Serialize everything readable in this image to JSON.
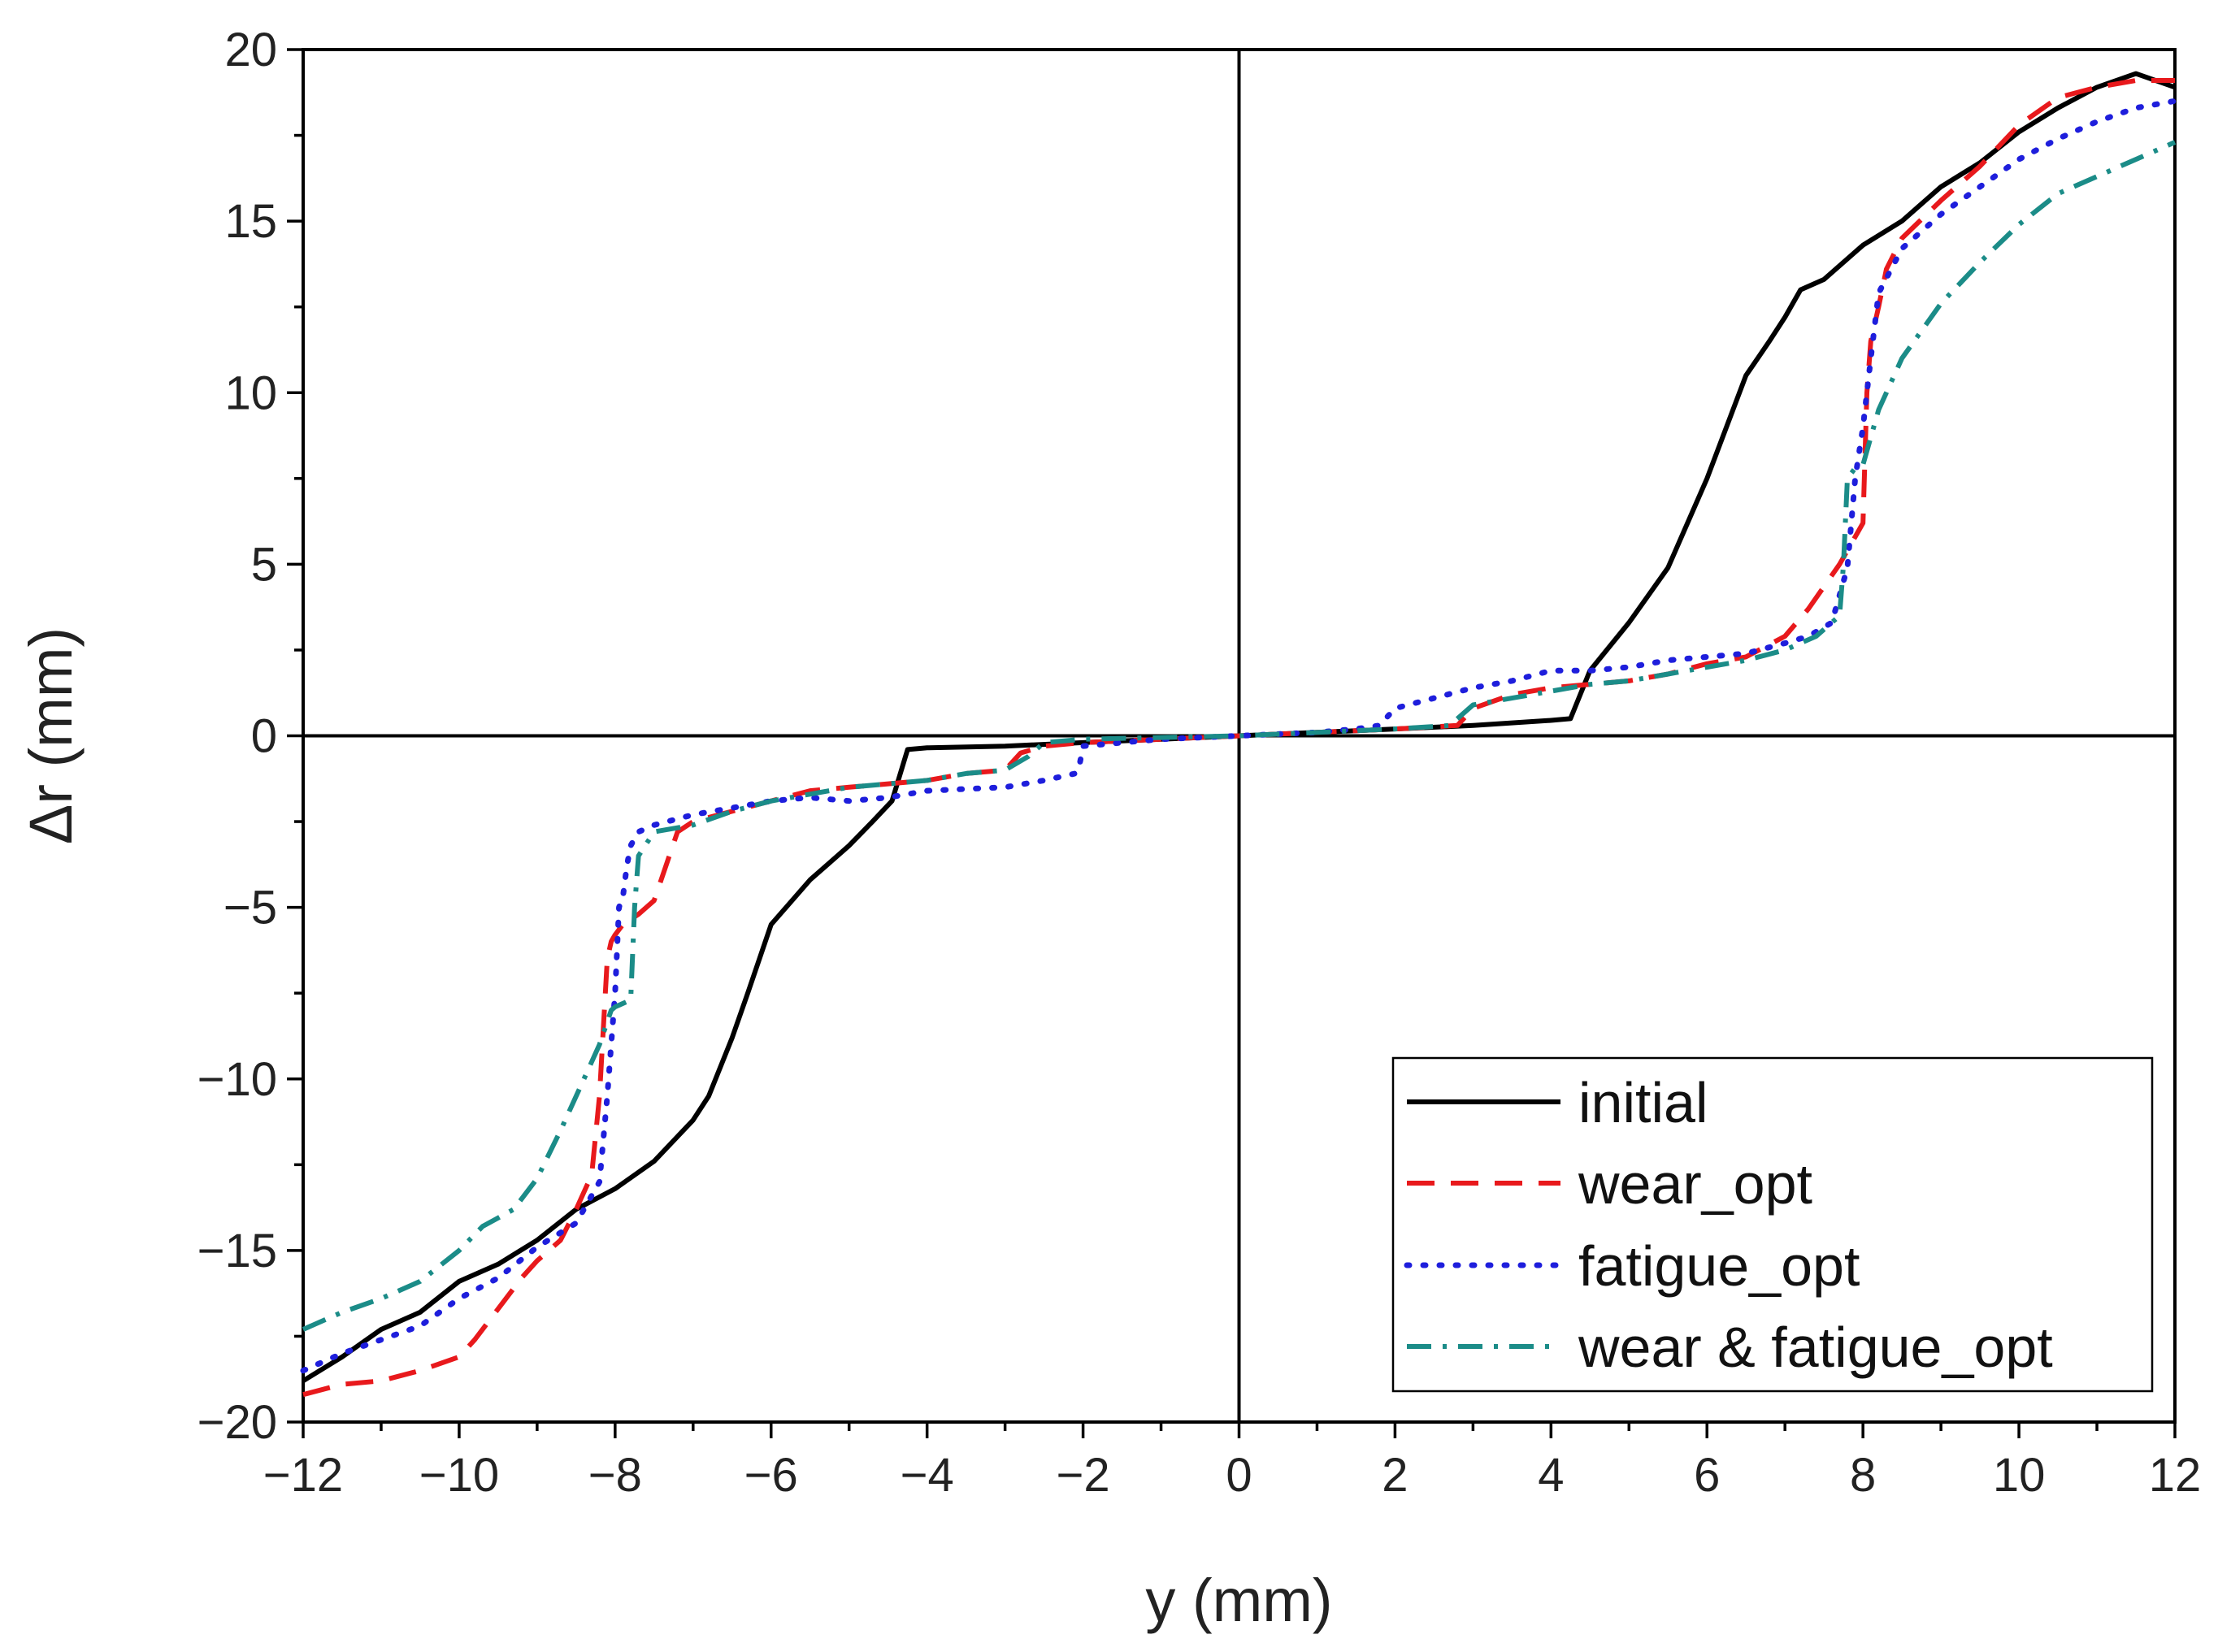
{
  "chart_data": {
    "type": "line",
    "title": "",
    "xlabel": "y (mm)",
    "ylabel": "Δr (mm)",
    "xlim": [
      -12,
      12
    ],
    "ylim": [
      -20,
      20
    ],
    "xticks": [
      -12,
      -10,
      -8,
      -6,
      -4,
      -2,
      0,
      2,
      4,
      6,
      8,
      10,
      12
    ],
    "yticks": [
      -20,
      -15,
      -10,
      -5,
      0,
      5,
      10,
      15,
      20
    ],
    "xtick_labels": [
      "−12",
      "−10",
      "−8",
      "−6",
      "−4",
      "−2",
      "0",
      "2",
      "4",
      "6",
      "8",
      "10",
      "12"
    ],
    "ytick_labels": [
      "−20",
      "−15",
      "−10",
      "−5",
      "0",
      "5",
      "10",
      "15",
      "20"
    ],
    "grid": false,
    "zero_lines": true,
    "legend_position": "bottom-right",
    "series": [
      {
        "name": "initial",
        "color": "#000000",
        "dash": "solid",
        "x": [
          -12,
          -11.5,
          -11,
          -10.5,
          -10,
          -9.5,
          -9,
          -8.5,
          -8,
          -7.5,
          -7,
          -6.8,
          -6.5,
          -6.3,
          -6,
          -5.5,
          -5,
          -4.7,
          -4.45,
          -4.25,
          -4,
          -3,
          -2,
          -1,
          0,
          1,
          2,
          3,
          4,
          4.25,
          4.5,
          5,
          5.5,
          6,
          6.5,
          6.8,
          7,
          7.2,
          7.5,
          8,
          8.5,
          9,
          9.5,
          10,
          10.5,
          11,
          11.5,
          12
        ],
        "y": [
          -18.8,
          -18.1,
          -17.3,
          -16.8,
          -15.9,
          -15.4,
          -14.7,
          -13.8,
          -13.2,
          -12.4,
          -11.2,
          -10.5,
          -8.8,
          -7.5,
          -5.5,
          -4.2,
          -3.2,
          -2.5,
          -1.9,
          -0.4,
          -0.35,
          -0.3,
          -0.2,
          -0.1,
          0,
          0.1,
          0.2,
          0.3,
          0.45,
          0.5,
          1.9,
          3.3,
          4.9,
          7.5,
          10.5,
          11.5,
          12.2,
          13.0,
          13.3,
          14.3,
          15.0,
          16.0,
          16.7,
          17.6,
          18.3,
          18.9,
          19.3,
          18.9
        ]
      },
      {
        "name": "wear_opt",
        "color": "#e8191c",
        "dash": "dashed",
        "x": [
          -12,
          -11.5,
          -11,
          -10.5,
          -10,
          -9.8,
          -9.5,
          -9.2,
          -9,
          -8.7,
          -8.5,
          -8.3,
          -8.2,
          -8.1,
          -8.05,
          -8,
          -7.9,
          -7.7,
          -7.5,
          -7.2,
          -7,
          -6.5,
          -6,
          -5.5,
          -5,
          -4.5,
          -4,
          -3.5,
          -3,
          -2.8,
          -2.5,
          -2,
          -1,
          0,
          1,
          2,
          2.8,
          3,
          3.5,
          4,
          4.5,
          5,
          5.5,
          6,
          6.5,
          7,
          7.3,
          7.7,
          7.9,
          8,
          8.05,
          8.1,
          8.2,
          8.3,
          8.5,
          9,
          9.5,
          10,
          10.5,
          11,
          11.5,
          12
        ],
        "y": [
          -19.2,
          -18.9,
          -18.8,
          -18.5,
          -18.1,
          -17.6,
          -16.7,
          -15.8,
          -15.3,
          -14.7,
          -13.8,
          -12.8,
          -10.5,
          -6.5,
          -6.0,
          -5.8,
          -5.5,
          -5.2,
          -4.8,
          -2.8,
          -2.5,
          -2.2,
          -1.9,
          -1.6,
          -1.5,
          -1.4,
          -1.3,
          -1.1,
          -1.0,
          -0.5,
          -0.3,
          -0.2,
          -0.1,
          0,
          0.1,
          0.2,
          0.3,
          0.8,
          1.2,
          1.4,
          1.5,
          1.6,
          1.8,
          2.1,
          2.3,
          2.9,
          3.7,
          5.0,
          5.8,
          6.2,
          10.0,
          11.5,
          12.5,
          13.6,
          14.5,
          15.6,
          16.6,
          17.8,
          18.6,
          18.9,
          19.1,
          19.1
        ]
      },
      {
        "name": "fatigue_opt",
        "color": "#1e1edc",
        "dash": "dotted",
        "x": [
          -12,
          -11.5,
          -11,
          -10.5,
          -10,
          -9.5,
          -9,
          -8.5,
          -8.2,
          -8.1,
          -8.0,
          -7.95,
          -7.9,
          -7.85,
          -7.8,
          -7.7,
          -7.5,
          -7,
          -6.5,
          -6,
          -5.5,
          -5,
          -4.5,
          -4,
          -3,
          -2.5,
          -2.1,
          -2.05,
          -2,
          -1.5,
          -1,
          0,
          1,
          1.5,
          1.8,
          2,
          2.5,
          3,
          3.5,
          4,
          4.5,
          5,
          5.5,
          6,
          6.5,
          7,
          7.3,
          7.6,
          7.8,
          7.9,
          8.0,
          8.1,
          8.2,
          8.5,
          9,
          9.5,
          10,
          10.5,
          11,
          11.5,
          12
        ],
        "y": [
          -18.5,
          -18.0,
          -17.6,
          -17.2,
          -16.4,
          -15.8,
          -14.9,
          -14.2,
          -13.0,
          -10.5,
          -7.5,
          -5.0,
          -4.7,
          -3.8,
          -3.2,
          -2.8,
          -2.6,
          -2.3,
          -2.1,
          -1.9,
          -1.8,
          -1.9,
          -1.8,
          -1.6,
          -1.5,
          -1.3,
          -1.1,
          -0.9,
          -0.3,
          -0.2,
          -0.1,
          0,
          0.1,
          0.2,
          0.3,
          0.8,
          1.1,
          1.4,
          1.6,
          1.9,
          1.9,
          2.0,
          2.2,
          2.3,
          2.4,
          2.7,
          2.9,
          3.3,
          4.9,
          7.5,
          9.0,
          11.0,
          12.9,
          14.2,
          15.2,
          16.0,
          16.8,
          17.4,
          17.9,
          18.3,
          18.5
        ]
      },
      {
        "name": "wear & fatigue_opt",
        "color": "#1b8c88",
        "dash": "dashdot",
        "x": [
          -12,
          -11.5,
          -11,
          -10.5,
          -10,
          -9.7,
          -9.3,
          -9,
          -8.7,
          -8.4,
          -8.2,
          -8.05,
          -8,
          -7.9,
          -7.8,
          -7.75,
          -7.7,
          -7.5,
          -7,
          -6.5,
          -6,
          -5.5,
          -5,
          -4.5,
          -4,
          -3.5,
          -3,
          -2.7,
          -2.5,
          -2,
          -1,
          0,
          1,
          2,
          2.7,
          3,
          3.5,
          4,
          4.5,
          5,
          5.5,
          6,
          6.5,
          7,
          7.4,
          7.7,
          7.75,
          7.8,
          7.9,
          8,
          8.2,
          8.5,
          9,
          9.5,
          10,
          10.5,
          11,
          11.5,
          12
        ],
        "y": [
          -17.3,
          -16.8,
          -16.4,
          -15.9,
          -15.0,
          -14.3,
          -13.8,
          -12.9,
          -11.5,
          -10.0,
          -9.0,
          -8.0,
          -7.9,
          -7.8,
          -7.7,
          -5.0,
          -3.5,
          -2.8,
          -2.6,
          -2.2,
          -1.9,
          -1.7,
          -1.5,
          -1.4,
          -1.3,
          -1.1,
          -1.0,
          -0.6,
          -0.2,
          -0.1,
          -0.05,
          0,
          0.1,
          0.2,
          0.3,
          0.9,
          1.1,
          1.3,
          1.5,
          1.6,
          1.8,
          2.0,
          2.2,
          2.5,
          2.9,
          3.5,
          5.0,
          7.5,
          7.8,
          7.9,
          9.5,
          11.0,
          12.6,
          13.8,
          14.9,
          15.8,
          16.3,
          16.8,
          17.3
        ]
      }
    ]
  }
}
